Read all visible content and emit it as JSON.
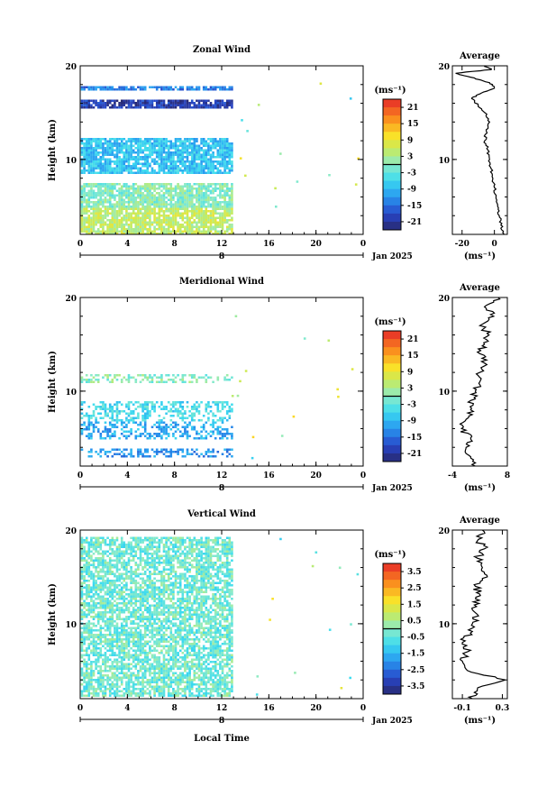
{
  "figure": {
    "xlabel": "Local Time",
    "date_label": "Jan 2025",
    "x_ticks": [
      "0",
      "4",
      "8",
      "12",
      "16",
      "20",
      "0"
    ],
    "day_label": "8",
    "ylabel": "Height (km)",
    "y_ticks": [
      "20",
      "10"
    ]
  },
  "chart_data": [
    {
      "type": "heatmap",
      "id": "zonal",
      "title": "Zonal Wind",
      "unit_label": "(ms⁻¹)",
      "x_range_hours": [
        0,
        24
      ],
      "ylim_km": [
        2,
        20
      ],
      "colorbar_ticks": [
        "21",
        "15",
        "9",
        "3",
        "-3",
        "-9",
        "-15",
        "-21"
      ],
      "colorbar_range": [
        -24,
        24
      ],
      "data_extent_hours": [
        0,
        12.8
      ],
      "description_values": {
        "layers": [
          {
            "from_km": 2,
            "to_km": 5,
            "value": 5
          },
          {
            "from_km": 5,
            "to_km": 7.5,
            "value": 0
          },
          {
            "from_km": 8.5,
            "to_km": 12.5,
            "value": -8
          },
          {
            "from_km": 15.5,
            "to_km": 16.5,
            "value": -20
          },
          {
            "from_km": 17.5,
            "to_km": 18,
            "value": -14
          }
        ]
      },
      "average": {
        "title": "Average",
        "xlim": [
          -26,
          8
        ],
        "x_ticks": [
          -20,
          0
        ],
        "xlabel": "(ms⁻¹)",
        "profile": [
          {
            "h": 2.0,
            "v": 6
          },
          {
            "h": 3,
            "v": 4
          },
          {
            "h": 4,
            "v": 3
          },
          {
            "h": 5,
            "v": 2
          },
          {
            "h": 6,
            "v": 1
          },
          {
            "h": 7,
            "v": 0
          },
          {
            "h": 8,
            "v": -1
          },
          {
            "h": 9,
            "v": -2
          },
          {
            "h": 10,
            "v": -3
          },
          {
            "h": 11,
            "v": -4
          },
          {
            "h": 12,
            "v": -6
          },
          {
            "h": 13,
            "v": -5
          },
          {
            "h": 14,
            "v": -3
          },
          {
            "h": 15,
            "v": -6
          },
          {
            "h": 15.8,
            "v": -10
          },
          {
            "h": 16.5,
            "v": -14
          },
          {
            "h": 17,
            "v": -9
          },
          {
            "h": 17.6,
            "v": 0
          },
          {
            "h": 18.2,
            "v": -3
          },
          {
            "h": 18.8,
            "v": -15
          },
          {
            "h": 19.2,
            "v": -24
          },
          {
            "h": 19.6,
            "v": -2
          },
          {
            "h": 20,
            "v": -6
          }
        ]
      }
    },
    {
      "type": "heatmap",
      "id": "meridional",
      "title": "Meridional Wind",
      "unit_label": "(ms⁻¹)",
      "x_range_hours": [
        0,
        24
      ],
      "ylim_km": [
        2,
        20
      ],
      "colorbar_ticks": [
        "21",
        "15",
        "9",
        "3",
        "-3",
        "-9",
        "-15",
        "-21"
      ],
      "colorbar_range": [
        -24,
        24
      ],
      "data_extent_hours": [
        0,
        12.8
      ],
      "description_values": {
        "layers": [
          {
            "from_km": 3,
            "to_km": 4,
            "value": -12
          },
          {
            "from_km": 5,
            "to_km": 7,
            "value": -10
          },
          {
            "from_km": 7,
            "to_km": 9,
            "value": -5
          },
          {
            "from_km": 11,
            "to_km": 12,
            "value": 0
          }
        ]
      },
      "average": {
        "title": "Average",
        "xlim": [
          -4,
          8
        ],
        "x_ticks": [
          -4,
          8
        ],
        "xlabel": "(ms⁻¹)",
        "profile": [
          {
            "h": 2.0,
            "v": 1
          },
          {
            "h": 3,
            "v": 0
          },
          {
            "h": 4,
            "v": -1
          },
          {
            "h": 5,
            "v": 0
          },
          {
            "h": 6,
            "v": -2
          },
          {
            "h": 7,
            "v": -1
          },
          {
            "h": 8,
            "v": 0
          },
          {
            "h": 9,
            "v": 0
          },
          {
            "h": 10,
            "v": 1
          },
          {
            "h": 11,
            "v": 2
          },
          {
            "h": 12,
            "v": 2
          },
          {
            "h": 13,
            "v": 3
          },
          {
            "h": 14,
            "v": 2
          },
          {
            "h": 15,
            "v": 3
          },
          {
            "h": 16,
            "v": 4
          },
          {
            "h": 17,
            "v": 2
          },
          {
            "h": 18,
            "v": 5
          },
          {
            "h": 19,
            "v": 3
          },
          {
            "h": 20,
            "v": 6
          }
        ]
      }
    },
    {
      "type": "heatmap",
      "id": "vertical",
      "title": "Vertical Wind",
      "unit_label": "(ms⁻¹)",
      "x_range_hours": [
        0,
        24
      ],
      "ylim_km": [
        2,
        20
      ],
      "colorbar_ticks": [
        "3.5",
        "2.5",
        "1.5",
        "0.5",
        "-0.5",
        "-1.5",
        "-2.5",
        "-3.5"
      ],
      "colorbar_range": [
        -4,
        4
      ],
      "data_extent_hours": [
        0,
        12.8
      ],
      "description_values": {
        "layers": [
          {
            "from_km": 2.2,
            "to_km": 19.5,
            "value": -0.3
          }
        ]
      },
      "average": {
        "title": "Average",
        "xlim": [
          -0.2,
          0.35
        ],
        "x_ticks": [
          -0.1,
          0.3
        ],
        "xlabel": "(ms⁻¹)",
        "profile": [
          {
            "h": 2.0,
            "v": 0.0
          },
          {
            "h": 3,
            "v": 0.05
          },
          {
            "h": 4,
            "v": 0.33
          },
          {
            "h": 5,
            "v": -0.05
          },
          {
            "h": 6,
            "v": -0.1
          },
          {
            "h": 7,
            "v": -0.05
          },
          {
            "h": 8,
            "v": -0.1
          },
          {
            "h": 9,
            "v": -0.02
          },
          {
            "h": 10,
            "v": 0.0
          },
          {
            "h": 11,
            "v": 0.05
          },
          {
            "h": 12,
            "v": 0.02
          },
          {
            "h": 13,
            "v": 0.08
          },
          {
            "h": 14,
            "v": 0.03
          },
          {
            "h": 15,
            "v": 0.15
          },
          {
            "h": 16,
            "v": 0.1
          },
          {
            "h": 17,
            "v": 0.05
          },
          {
            "h": 18,
            "v": 0.12
          },
          {
            "h": 19,
            "v": 0.06
          },
          {
            "h": 20,
            "v": 0.1
          }
        ]
      }
    }
  ]
}
